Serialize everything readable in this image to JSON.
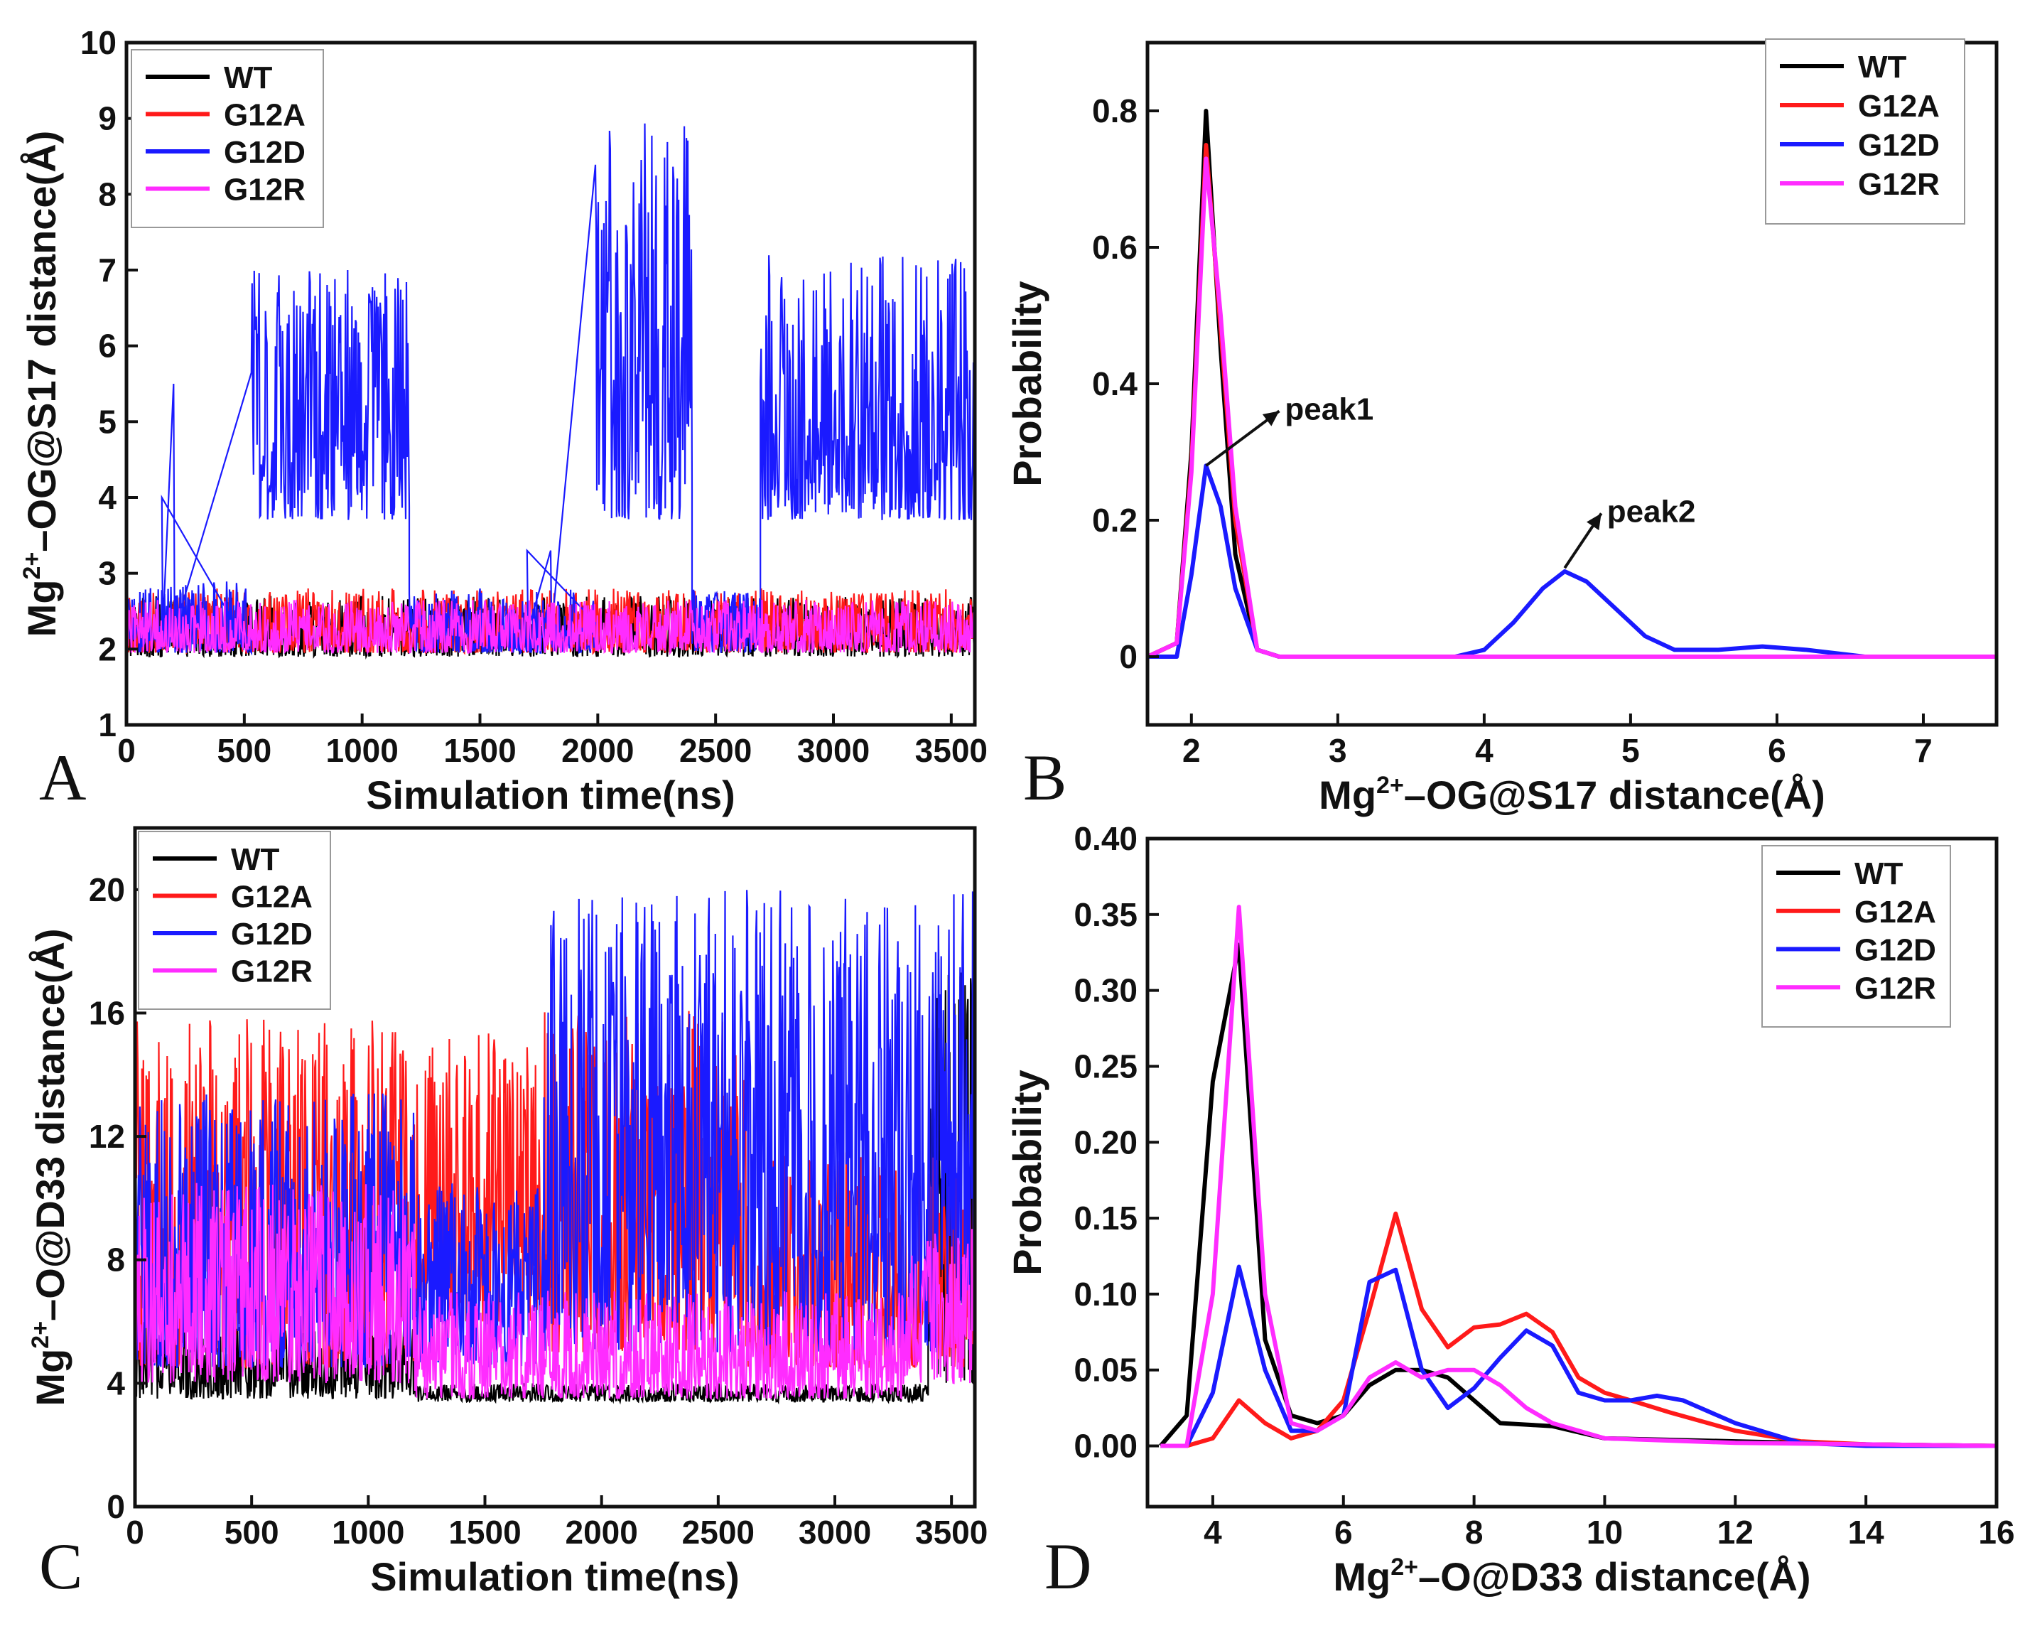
{
  "colors": {
    "WT": "#000000",
    "G12A": "#ff1a1a",
    "G12D": "#1a1aff",
    "G12R": "#ff2cff"
  },
  "chart_data": [
    {
      "id": "A",
      "type": "line",
      "panel_label": "A",
      "xlabel": "Simulation time(ns)",
      "ylabel_parts": [
        "Mg",
        "2+",
        "–OG@S17 distance(Å)"
      ],
      "xlim": [
        0,
        3600
      ],
      "ylim": [
        1,
        10
      ],
      "xticks": [
        0,
        500,
        1000,
        1500,
        2000,
        2500,
        3000,
        3500
      ],
      "yticks": [
        1,
        2,
        3,
        4,
        5,
        6,
        7,
        8,
        9,
        10
      ],
      "legend": [
        "WT",
        "G12A",
        "G12D",
        "G12R"
      ],
      "legend_position": "top-left",
      "series": [
        {
          "name": "WT",
          "baseline": [
            [
              0,
              2.2
            ],
            [
              3600,
              2.2
            ]
          ],
          "band": [
            1.9,
            2.7
          ]
        },
        {
          "name": "G12A",
          "baseline": [
            [
              0,
              2.2
            ],
            [
              3600,
              2.2
            ]
          ],
          "band": [
            1.95,
            2.8
          ]
        },
        {
          "name": "G12D",
          "segments": [
            {
              "start": 0,
              "end": 530,
              "low": 1.95,
              "high": 2.9,
              "spikes": [
                [
                  150,
                  4.0
                ],
                [
                  200,
                  5.5
                ]
              ]
            },
            {
              "start": 530,
              "end": 1200,
              "low": 3.7,
              "high": 7.0
            },
            {
              "start": 1200,
              "end": 1990,
              "low": 1.95,
              "high": 2.8,
              "spikes": [
                [
                  1700,
                  3.3
                ],
                [
                  1800,
                  3.3
                ]
              ]
            },
            {
              "start": 1990,
              "end": 2400,
              "low": 3.7,
              "high": 9.0
            },
            {
              "start": 2400,
              "end": 2690,
              "low": 1.95,
              "high": 2.8
            },
            {
              "start": 2690,
              "end": 3600,
              "low": 3.7,
              "high": 7.2
            }
          ]
        },
        {
          "name": "G12R",
          "baseline": [
            [
              0,
              2.2
            ],
            [
              3600,
              2.2
            ]
          ],
          "band": [
            1.95,
            2.65
          ]
        }
      ]
    },
    {
      "id": "B",
      "type": "line",
      "panel_label": "B",
      "xlabel_parts": [
        "Mg",
        "2+",
        "–OG@S17 distance(Å)"
      ],
      "ylabel": "Probability",
      "xlim": [
        1.7,
        7.5
      ],
      "ylim": [
        -0.1,
        0.9
      ],
      "xticks": [
        2,
        3,
        4,
        5,
        6,
        7
      ],
      "yticks": [
        0.0,
        0.2,
        0.4,
        0.6,
        0.8
      ],
      "legend": [
        "WT",
        "G12A",
        "G12D",
        "G12R"
      ],
      "legend_position": "top-right",
      "annotations": [
        {
          "text": "peak1",
          "x": 2.3,
          "y": 0.37,
          "arrow_from": [
            2.1,
            0.28
          ],
          "arrow_to": [
            2.6,
            0.36
          ]
        },
        {
          "text": "peak2",
          "x": 4.7,
          "y": 0.23,
          "arrow_from": [
            4.55,
            0.13
          ],
          "arrow_to": [
            4.8,
            0.21
          ]
        }
      ],
      "series": [
        {
          "name": "WT",
          "x": [
            1.7,
            1.9,
            2.0,
            2.1,
            2.2,
            2.3,
            2.45,
            2.6,
            3.0,
            7.5
          ],
          "y": [
            0,
            0.02,
            0.3,
            0.8,
            0.45,
            0.15,
            0.01,
            0,
            0,
            0
          ]
        },
        {
          "name": "G12A",
          "x": [
            1.7,
            1.9,
            2.0,
            2.1,
            2.2,
            2.3,
            2.45,
            2.6,
            3.0,
            7.5
          ],
          "y": [
            0,
            0.02,
            0.28,
            0.75,
            0.48,
            0.2,
            0.01,
            0,
            0,
            0
          ]
        },
        {
          "name": "G12D",
          "x": [
            1.7,
            1.9,
            2.0,
            2.1,
            2.2,
            2.3,
            2.45,
            2.6,
            3.0,
            3.8,
            4.0,
            4.2,
            4.4,
            4.55,
            4.7,
            4.9,
            5.1,
            5.3,
            5.6,
            5.9,
            6.2,
            6.6,
            7.5
          ],
          "y": [
            0,
            0.0,
            0.12,
            0.28,
            0.22,
            0.1,
            0.01,
            0,
            0,
            0.0,
            0.01,
            0.05,
            0.1,
            0.125,
            0.11,
            0.07,
            0.03,
            0.01,
            0.01,
            0.015,
            0.01,
            0.0,
            0
          ]
        },
        {
          "name": "G12R",
          "x": [
            1.7,
            1.9,
            2.0,
            2.1,
            2.2,
            2.3,
            2.45,
            2.6,
            3.0,
            7.5
          ],
          "y": [
            0,
            0.02,
            0.27,
            0.73,
            0.5,
            0.22,
            0.01,
            0,
            0,
            0
          ]
        }
      ]
    },
    {
      "id": "C",
      "type": "line",
      "panel_label": "C",
      "xlabel": "Simulation time(ns)",
      "ylabel_parts": [
        "Mg",
        "2+",
        "–O@D33 distance(Å)"
      ],
      "xlim": [
        0,
        3600
      ],
      "ylim": [
        0,
        22
      ],
      "xticks": [
        0,
        500,
        1000,
        1500,
        2000,
        2500,
        3000,
        3500
      ],
      "yticks": [
        0,
        4,
        8,
        12,
        16,
        20
      ],
      "legend": [
        "WT",
        "G12A",
        "G12D",
        "G12R"
      ],
      "legend_position": "top-left",
      "series": [
        {
          "name": "WT",
          "segments": [
            {
              "start": 0,
              "end": 1200,
              "low": 3.5,
              "high": 6.0
            },
            {
              "start": 1200,
              "end": 3400,
              "low": 3.4,
              "high": 4.0
            },
            {
              "start": 3400,
              "end": 3600,
              "low": 4.0,
              "high": 17.8
            }
          ]
        },
        {
          "name": "G12A",
          "segments": [
            {
              "start": 0,
              "end": 1200,
              "low": 4.5,
              "high": 15.8
            },
            {
              "start": 1200,
              "end": 1750,
              "low": 6.0,
              "high": 15.4
            },
            {
              "start": 1750,
              "end": 2620,
              "low": 5.0,
              "high": 16.2
            },
            {
              "start": 2620,
              "end": 3600,
              "low": 4.5,
              "high": 11.5
            }
          ]
        },
        {
          "name": "G12D",
          "segments": [
            {
              "start": 0,
              "end": 1200,
              "low": 4.5,
              "high": 13.4
            },
            {
              "start": 1200,
              "end": 1750,
              "low": 4.5,
              "high": 10.5
            },
            {
              "start": 1750,
              "end": 3600,
              "low": 5.0,
              "high": 20.0
            }
          ]
        },
        {
          "name": "G12R",
          "segments": [
            {
              "start": 0,
              "end": 1200,
              "low": 4.0,
              "high": 10.5
            },
            {
              "start": 1200,
              "end": 3300,
              "low": 3.5,
              "high": 7.0
            },
            {
              "start": 3300,
              "end": 3600,
              "low": 4.0,
              "high": 9.0
            }
          ]
        }
      ]
    },
    {
      "id": "D",
      "type": "line",
      "panel_label": "D",
      "xlabel_parts": [
        "Mg",
        "2+",
        "–O@D33 distance(Å)"
      ],
      "ylabel": "Probability",
      "xlim": [
        3,
        16
      ],
      "ylim": [
        -0.04,
        0.4
      ],
      "xticks": [
        4,
        6,
        8,
        10,
        12,
        14,
        16
      ],
      "yticks": [
        0.0,
        0.05,
        0.1,
        0.15,
        0.2,
        0.25,
        0.3,
        0.35,
        0.4
      ],
      "ytick_labels": [
        "0.00",
        "0.05",
        "0.10",
        "0.15",
        "0.20",
        "0.25",
        "0.30",
        "0.35",
        "0.40"
      ],
      "legend": [
        "WT",
        "G12A",
        "G12D",
        "G12R"
      ],
      "legend_position": "top-right",
      "series": [
        {
          "name": "WT",
          "x": [
            3.2,
            3.6,
            4.0,
            4.4,
            4.8,
            5.2,
            5.6,
            6.0,
            6.4,
            6.8,
            7.2,
            7.6,
            8.0,
            8.4,
            8.8,
            9.2,
            10,
            12,
            14,
            16
          ],
          "y": [
            0,
            0.02,
            0.24,
            0.33,
            0.07,
            0.02,
            0.015,
            0.02,
            0.04,
            0.05,
            0.05,
            0.045,
            0.03,
            0.015,
            0.014,
            0.013,
            0.005,
            0.003,
            0.001,
            0
          ]
        },
        {
          "name": "G12A",
          "x": [
            3.2,
            3.6,
            4.0,
            4.4,
            4.8,
            5.2,
            5.6,
            6.0,
            6.4,
            6.8,
            7.2,
            7.6,
            8.0,
            8.4,
            8.8,
            9.2,
            9.6,
            10.0,
            10.4,
            11,
            12,
            13,
            14,
            16
          ],
          "y": [
            0,
            0.0,
            0.005,
            0.03,
            0.015,
            0.005,
            0.01,
            0.03,
            0.09,
            0.153,
            0.09,
            0.065,
            0.078,
            0.08,
            0.087,
            0.075,
            0.045,
            0.035,
            0.03,
            0.022,
            0.01,
            0.003,
            0.001,
            0
          ]
        },
        {
          "name": "G12D",
          "x": [
            3.2,
            3.6,
            4.0,
            4.4,
            4.8,
            5.2,
            5.6,
            6.0,
            6.4,
            6.8,
            7.2,
            7.6,
            8.0,
            8.4,
            8.8,
            9.2,
            9.6,
            10.0,
            10.4,
            10.8,
            11.2,
            12,
            13,
            14,
            16
          ],
          "y": [
            0,
            0.0,
            0.035,
            0.118,
            0.05,
            0.01,
            0.01,
            0.02,
            0.108,
            0.116,
            0.05,
            0.025,
            0.038,
            0.058,
            0.076,
            0.066,
            0.035,
            0.03,
            0.03,
            0.033,
            0.03,
            0.015,
            0.002,
            0.0,
            0
          ]
        },
        {
          "name": "G12R",
          "x": [
            3.2,
            3.6,
            4.0,
            4.4,
            4.8,
            5.2,
            5.6,
            6.0,
            6.4,
            6.8,
            7.2,
            7.6,
            8.0,
            8.4,
            8.8,
            9.2,
            10,
            12,
            14,
            16
          ],
          "y": [
            0,
            0.0,
            0.1,
            0.355,
            0.1,
            0.015,
            0.01,
            0.02,
            0.045,
            0.055,
            0.045,
            0.05,
            0.05,
            0.04,
            0.025,
            0.015,
            0.005,
            0.002,
            0.001,
            0
          ]
        }
      ]
    }
  ]
}
